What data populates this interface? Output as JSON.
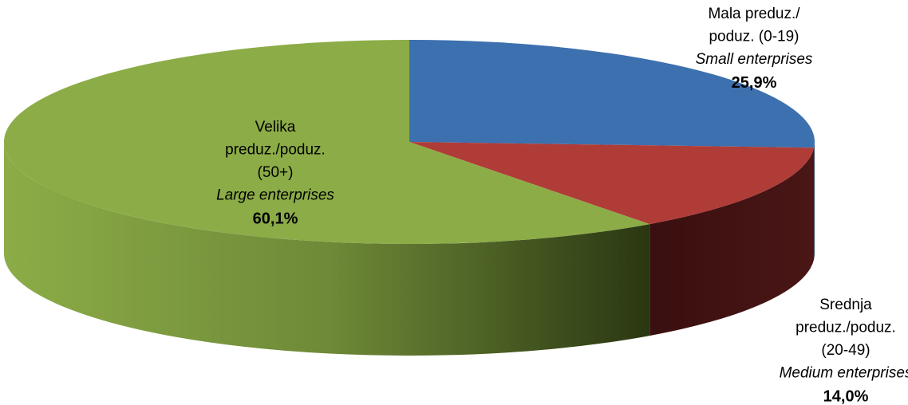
{
  "chart_data": {
    "type": "pie",
    "categories": [
      [
        "Mala preduz./",
        "poduz. (0-19)"
      ],
      [
        "Srednja",
        "preduz./poduz.",
        "(20-49)"
      ],
      [
        "Velika",
        "preduz./poduz.",
        "(50+)"
      ]
    ],
    "categories_en": [
      "Small enterprises",
      "Medium enterprises",
      "Large enterprises"
    ],
    "values": [
      25.9,
      14.0,
      60.1
    ],
    "value_labels": [
      "25,9%",
      "14,0%",
      "60,1%"
    ],
    "colors": [
      "#3d70ae",
      "#b03c38",
      "#8cac47"
    ]
  }
}
